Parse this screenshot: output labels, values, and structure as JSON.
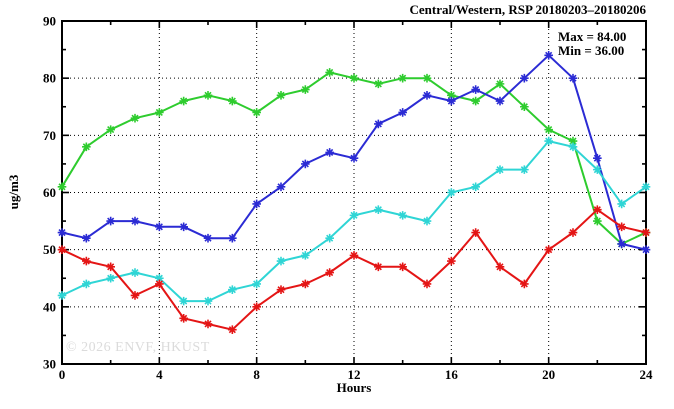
{
  "title": "Central/Western, RSP 20180203–20180206",
  "legend": {
    "max_label": "Max = 84.00",
    "min_label": "Min = 36.00"
  },
  "watermark": "© 2026 ENVF, HKUST",
  "chart_data": {
    "type": "line",
    "title": "Central/Western, RSP 20180203–20180206",
    "xlabel": "Hours",
    "ylabel": "ug/m3",
    "xlim": [
      0,
      24
    ],
    "ylim": [
      30,
      90
    ],
    "x_major_ticks": [
      0,
      4,
      8,
      12,
      16,
      20,
      24
    ],
    "x_minor_ticks": [
      2,
      6,
      10,
      14,
      18,
      22
    ],
    "y_major_ticks": [
      30,
      40,
      50,
      60,
      70,
      80,
      90
    ],
    "y_minor_ticks": [
      35,
      45,
      55,
      65,
      75,
      85
    ],
    "grid": true,
    "grid_x_values": [
      4,
      8,
      12,
      16,
      20
    ],
    "grid_y_values": [
      40,
      50,
      60,
      70,
      80
    ],
    "legend_position": "top-right-inside",
    "x": [
      0,
      1,
      2,
      3,
      4,
      5,
      6,
      7,
      8,
      9,
      10,
      11,
      12,
      13,
      14,
      15,
      16,
      17,
      18,
      19,
      20,
      21,
      22,
      23,
      24
    ],
    "series": [
      {
        "name": "green-series",
        "color": "#2ecc2e",
        "values": [
          61,
          68,
          71,
          73,
          74,
          76,
          77,
          76,
          74,
          77,
          78,
          81,
          80,
          79,
          80,
          80,
          77,
          76,
          79,
          75,
          71,
          69,
          55,
          51,
          53
        ]
      },
      {
        "name": "blue-series",
        "color": "#2b2bd4",
        "values": [
          53,
          52,
          55,
          55,
          54,
          54,
          52,
          52,
          58,
          61,
          65,
          67,
          66,
          72,
          74,
          77,
          76,
          78,
          76,
          80,
          84,
          80,
          66,
          51,
          50
        ]
      },
      {
        "name": "cyan-series",
        "color": "#2fd5d5",
        "values": [
          42,
          44,
          45,
          46,
          45,
          41,
          41,
          43,
          44,
          48,
          49,
          52,
          56,
          57,
          56,
          55,
          60,
          61,
          64,
          64,
          69,
          68,
          64,
          58,
          61
        ]
      },
      {
        "name": "red-series",
        "color": "#e41515",
        "values": [
          50,
          48,
          47,
          42,
          44,
          38,
          37,
          36,
          40,
          43,
          44,
          46,
          49,
          47,
          47,
          44,
          48,
          53,
          47,
          44,
          50,
          53,
          57,
          54,
          53
        ]
      }
    ],
    "stats": {
      "max": 84.0,
      "min": 36.0
    }
  }
}
